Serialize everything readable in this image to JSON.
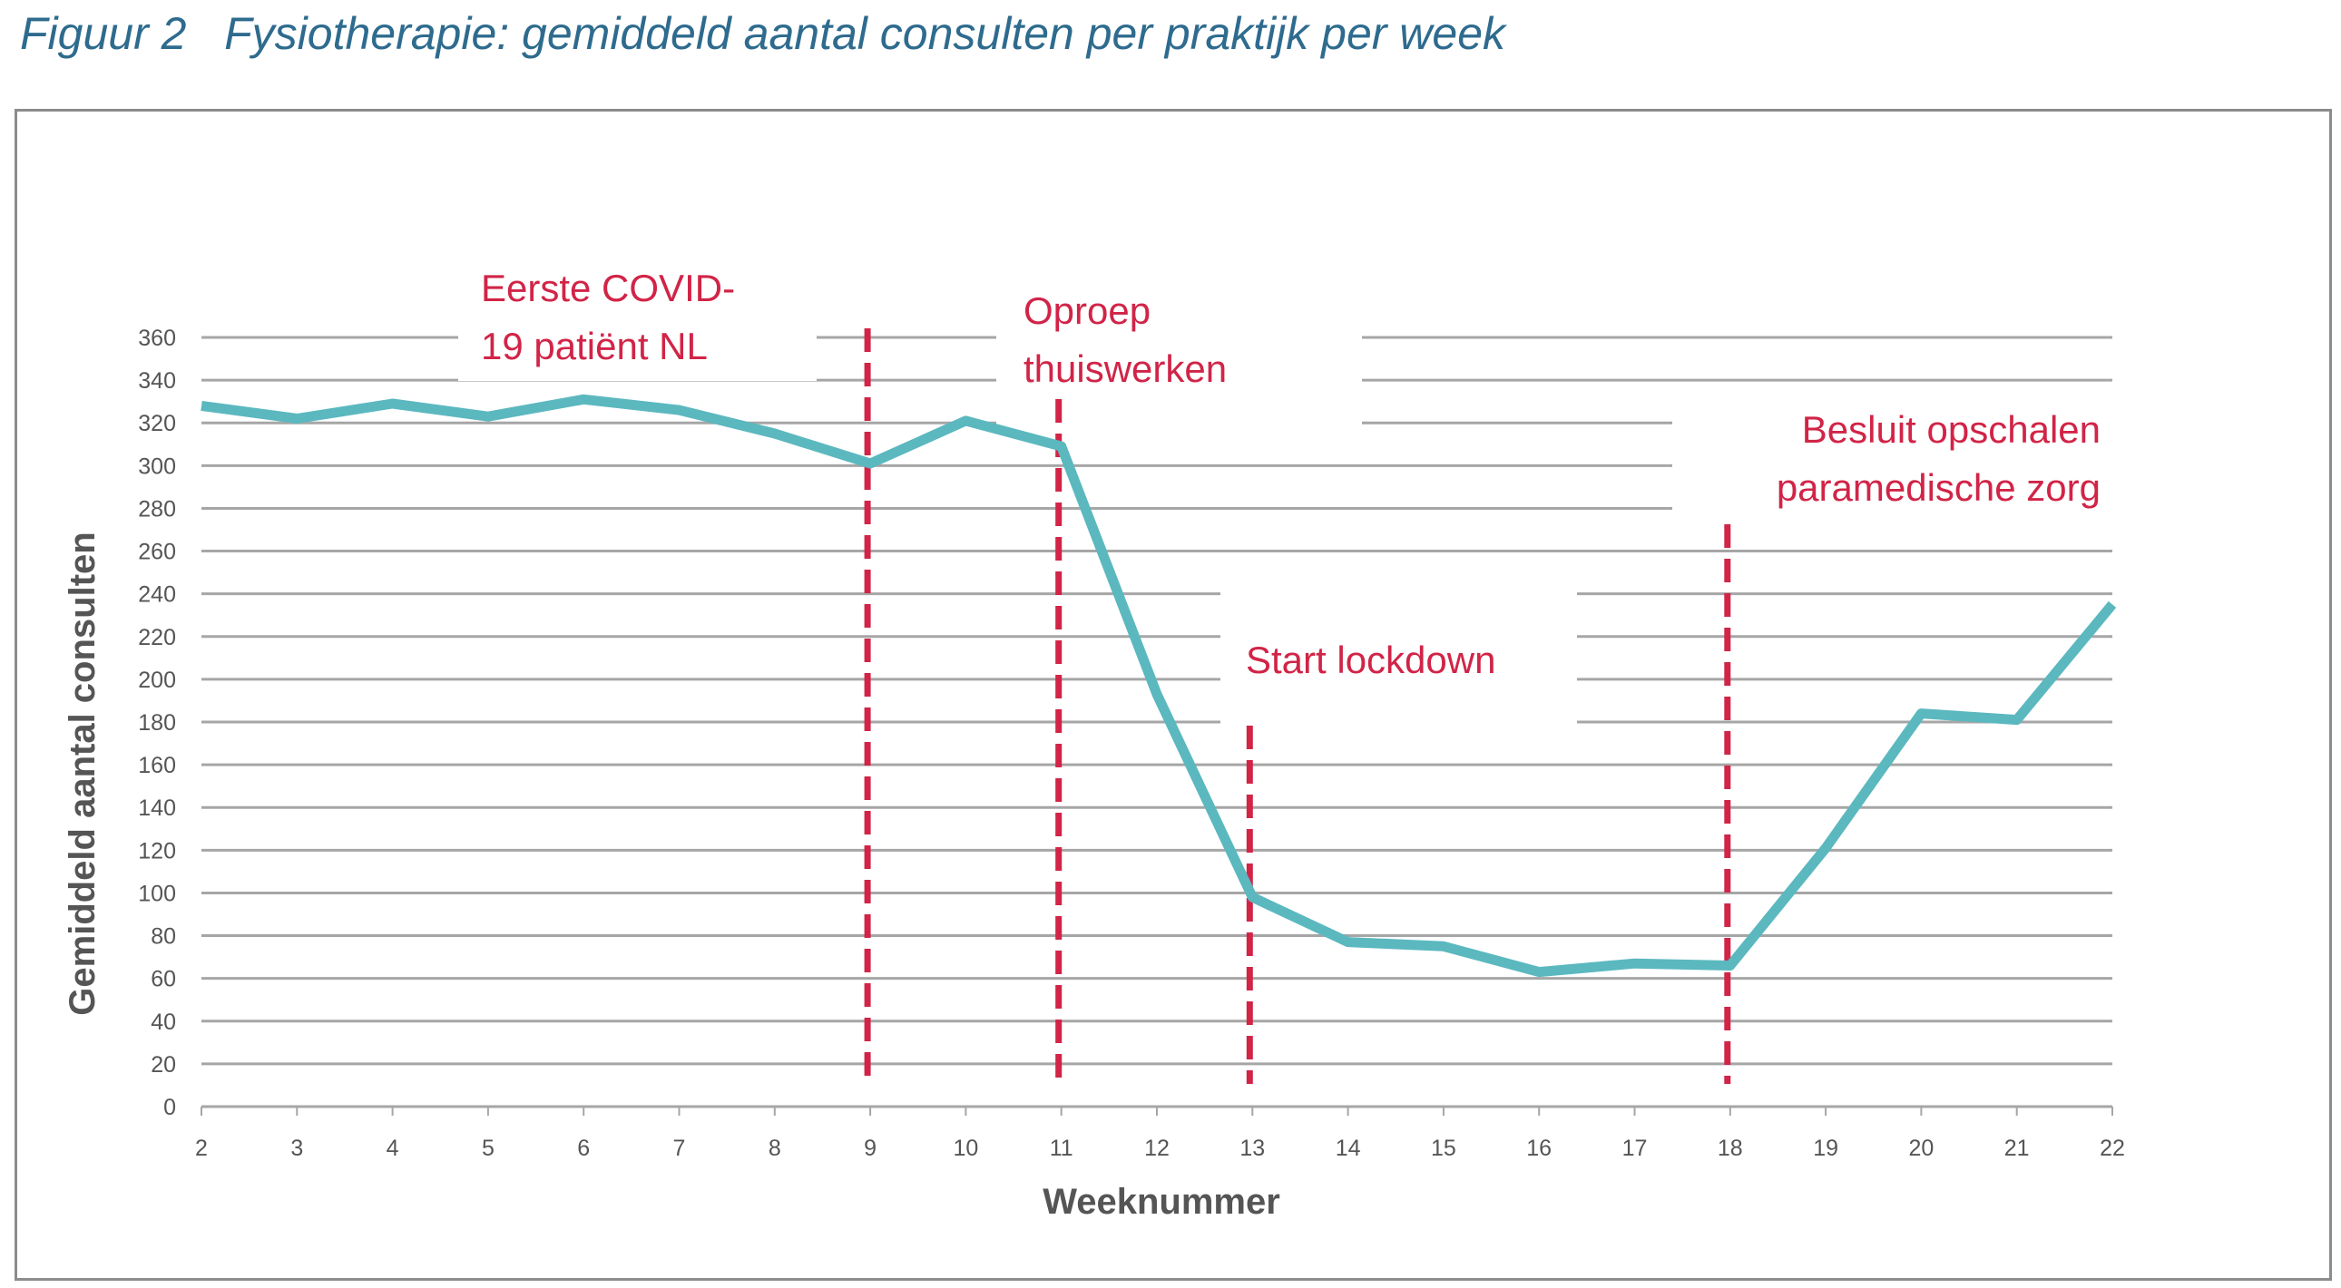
{
  "title": {
    "figure_label": "Figuur 2",
    "text": "Fysiotherapie: gemiddeld aantal consulten per praktijk per week"
  },
  "colors": {
    "title": "#2e6b8e",
    "line": "#5bb8bf",
    "marker": "#d12447",
    "grid": "#a6a6a6",
    "text": "#555555",
    "frame": "#8c8c8c"
  },
  "chart_data": {
    "type": "line",
    "title": "Fysiotherapie: gemiddeld aantal consulten per praktijk per week",
    "xlabel": "Weeknummer",
    "ylabel": "Gemiddeld aantal consulten",
    "x": [
      2,
      3,
      4,
      5,
      6,
      7,
      8,
      9,
      10,
      11,
      12,
      13,
      14,
      15,
      16,
      17,
      18,
      19,
      20,
      21,
      22
    ],
    "y": [
      328,
      322,
      329,
      323,
      331,
      326,
      315,
      301,
      321,
      309,
      193,
      98,
      77,
      75,
      63,
      67,
      66,
      121,
      184,
      181,
      235
    ],
    "xlim": [
      2,
      22
    ],
    "ylim": [
      0,
      360
    ],
    "yticks": [
      0,
      20,
      40,
      60,
      80,
      100,
      120,
      140,
      160,
      180,
      200,
      220,
      240,
      260,
      280,
      300,
      320,
      340,
      360
    ],
    "xticks": [
      2,
      3,
      4,
      5,
      6,
      7,
      8,
      9,
      10,
      11,
      12,
      13,
      14,
      15,
      16,
      17,
      18,
      19,
      20,
      21,
      22
    ],
    "grid": "horizontal",
    "legend": "none",
    "events": [
      {
        "week": 9,
        "label_lines": [
          "Eerste COVID-",
          "19 patiënt NL"
        ]
      },
      {
        "week": 11,
        "label_lines": [
          "Oproep",
          "thuiswerken"
        ]
      },
      {
        "week": 13,
        "label_lines": [
          "Start lockdown"
        ]
      },
      {
        "week": 18,
        "label_lines": [
          "Besluit opschalen",
          "paramedische zorg"
        ]
      }
    ]
  }
}
